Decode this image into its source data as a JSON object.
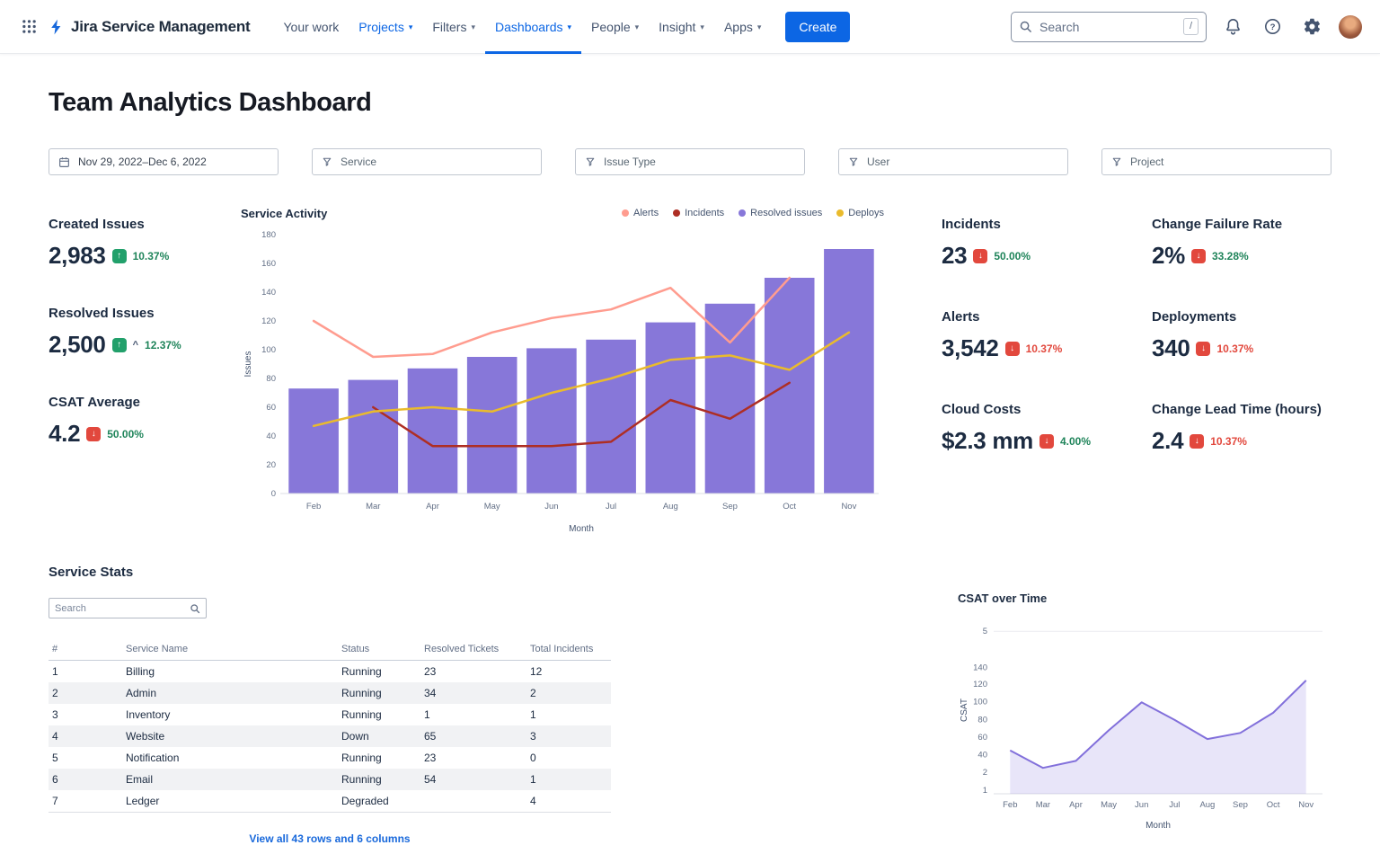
{
  "nav": {
    "logo_text": "Jira Service Management",
    "items": [
      {
        "label": "Your work",
        "caret": false,
        "active": false,
        "current": false
      },
      {
        "label": "Projects",
        "caret": true,
        "active": true,
        "current": false
      },
      {
        "label": "Filters",
        "caret": true,
        "active": false,
        "current": false
      },
      {
        "label": "Dashboards",
        "caret": true,
        "active": true,
        "current": true
      },
      {
        "label": "People",
        "caret": true,
        "active": false,
        "current": false
      },
      {
        "label": "Insight",
        "caret": true,
        "active": false,
        "current": false
      },
      {
        "label": "Apps",
        "caret": true,
        "active": false,
        "current": false
      }
    ],
    "create_label": "Create",
    "search": {
      "placeholder": "Search",
      "shortcut": "/"
    }
  },
  "page": {
    "title": "Team Analytics Dashboard"
  },
  "filters": [
    {
      "label": "Nov 29, 2022–Dec 6, 2022",
      "icon": "calendar",
      "placeholder": false
    },
    {
      "label": "Service",
      "icon": "filter",
      "placeholder": true
    },
    {
      "label": "Issue Type",
      "icon": "filter",
      "placeholder": true
    },
    {
      "label": "User",
      "icon": "filter",
      "placeholder": true
    },
    {
      "label": "Project",
      "icon": "filter",
      "placeholder": true
    }
  ],
  "kpis_left": [
    {
      "label": "Created Issues",
      "value": "2,983",
      "badge": "green",
      "arrow": "up",
      "caret": false,
      "delta": "10.37%",
      "delta_color": "green"
    },
    {
      "label": "Resolved Issues",
      "value": "2,500",
      "badge": "green",
      "arrow": "up",
      "caret": true,
      "delta": "12.37%",
      "delta_color": "green"
    },
    {
      "label": "CSAT Average",
      "value": "4.2",
      "badge": "red",
      "arrow": "down",
      "caret": false,
      "delta": "50.00%",
      "delta_color": "green"
    }
  ],
  "kpis_right": [
    {
      "label": "Incidents",
      "value": "23",
      "badge": "red",
      "arrow": "down",
      "caret": false,
      "delta": "50.00%",
      "delta_color": "green"
    },
    {
      "label": "Change Failure Rate",
      "value": "2%",
      "badge": "red",
      "arrow": "down",
      "caret": false,
      "delta": "33.28%",
      "delta_color": "green"
    },
    {
      "label": "Alerts",
      "value": "3,542",
      "badge": "red",
      "arrow": "down",
      "caret": false,
      "delta": "10.37%",
      "delta_color": "red"
    },
    {
      "label": "Deployments",
      "value": "340",
      "badge": "red",
      "arrow": "down",
      "caret": false,
      "delta": "10.37%",
      "delta_color": "red"
    },
    {
      "label": "Cloud Costs",
      "value": "$2.3 mm",
      "badge": "red",
      "arrow": "down",
      "caret": false,
      "delta": "4.00%",
      "delta_color": "green"
    },
    {
      "label": "Change Lead Time (hours)",
      "value": "2.4",
      "badge": "red",
      "arrow": "down",
      "caret": false,
      "delta": "10.37%",
      "delta_color": "red"
    }
  ],
  "chart_data": [
    {
      "id": "service_activity",
      "type": "combo",
      "title": "Service Activity",
      "categories": [
        "Feb",
        "Mar",
        "Apr",
        "May",
        "Jun",
        "Jul",
        "Aug",
        "Sep",
        "Oct",
        "Nov"
      ],
      "xlabel": "Month",
      "ylabel": "Issues",
      "ylim": [
        0,
        180
      ],
      "yticks": [
        0,
        20,
        40,
        60,
        80,
        100,
        120,
        140,
        160,
        180
      ],
      "bar_series": {
        "name": "Resolved issues",
        "color": "#8777d9",
        "values": [
          73,
          79,
          87,
          95,
          101,
          107,
          119,
          132,
          150,
          170
        ]
      },
      "line_series": [
        {
          "name": "Alerts",
          "color": "#ff9c8f",
          "values": [
            120,
            95,
            97,
            112,
            122,
            128,
            143,
            105,
            150,
            null
          ]
        },
        {
          "name": "Incidents",
          "color": "#ae2e24",
          "values": [
            null,
            60,
            33,
            33,
            33,
            36,
            65,
            52,
            77,
            null
          ]
        },
        {
          "name": "Deploys",
          "color": "#eabb2c",
          "values": [
            47,
            57,
            60,
            57,
            70,
            80,
            93,
            96,
            86,
            112
          ]
        }
      ],
      "legend": [
        {
          "label": "Alerts",
          "color": "#ff9c8f"
        },
        {
          "label": "Incidents",
          "color": "#ae2e24"
        },
        {
          "label": "Resolved issues",
          "color": "#8777d9"
        },
        {
          "label": "Deploys",
          "color": "#eabb2c"
        }
      ],
      "legend_position": "top-right",
      "grid": false
    },
    {
      "id": "csat_over_time",
      "type": "area",
      "title": "CSAT over Time",
      "categories": [
        "Feb",
        "Mar",
        "Apr",
        "May",
        "Jun",
        "Jul",
        "Aug",
        "Sep",
        "Oct",
        "Nov"
      ],
      "xlabel": "Month",
      "ylabel": "CSAT",
      "yticks": [
        "5",
        "140",
        "120",
        "100",
        "80",
        "60",
        "40",
        "2",
        "1"
      ],
      "values": [
        45,
        25,
        33,
        68,
        100,
        80,
        58,
        65,
        88,
        125
      ],
      "color": "#8270db",
      "fill_opacity": 0.18,
      "grid": false
    }
  ],
  "service_stats": {
    "title": "Service Stats",
    "search_placeholder": "Search",
    "columns": [
      "#",
      "Service Name",
      "Status",
      "Resolved Tickets",
      "Total Incidents"
    ],
    "rows": [
      {
        "num": "1",
        "name": "Billing",
        "status": "Running",
        "negative": false,
        "resolved": "23",
        "incidents": "12"
      },
      {
        "num": "2",
        "name": "Admin",
        "status": "Running",
        "negative": false,
        "resolved": "34",
        "incidents": "2"
      },
      {
        "num": "3",
        "name": "Inventory",
        "status": "Running",
        "negative": false,
        "resolved": "1",
        "incidents": "1"
      },
      {
        "num": "4",
        "name": "Website",
        "status": "Down",
        "negative": true,
        "resolved": "65",
        "incidents": "3"
      },
      {
        "num": "5",
        "name": "Notification",
        "status": "Running",
        "negative": false,
        "resolved": "23",
        "incidents": "0"
      },
      {
        "num": "6",
        "name": "Email",
        "status": "Running",
        "negative": false,
        "resolved": "54",
        "incidents": "1"
      },
      {
        "num": "7",
        "name": "Ledger",
        "status": "Degraded",
        "negative": true,
        "resolved": "",
        "incidents": "4"
      }
    ],
    "view_all": "View all 43 rows and 6 columns"
  },
  "colors": {
    "green_badge": "#22a06b",
    "red_badge": "#e2483d",
    "green_text": "#1f845a",
    "red_text": "#e2483d",
    "link_blue": "#1868db",
    "accent_blue": "#0c66e4",
    "negative_status": "#ca3521"
  }
}
